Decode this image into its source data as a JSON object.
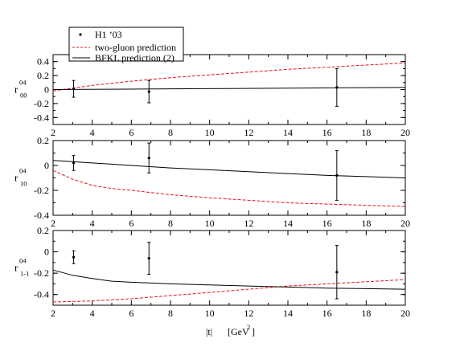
{
  "chart_data": {
    "type": "line",
    "x_label_main": "|t|",
    "x_label_unit": "[GeV",
    "x_label_unit_exp": "2",
    "x_label_unit_close": "]",
    "xlim": [
      2,
      20
    ],
    "x_ticks": [
      "2",
      "4",
      "6",
      "8",
      "10",
      "12",
      "14",
      "16",
      "18",
      "20"
    ],
    "legend": {
      "placement": "top-left",
      "entries": [
        {
          "label": "H1 ’03",
          "style": "points",
          "color": "#000000"
        },
        {
          "label": "two-gluon prediction",
          "style": "dashed",
          "color": "#e8141d"
        },
        {
          "label": "BFKL prediction (2)",
          "style": "solid",
          "color": "#000000"
        }
      ]
    },
    "panels": [
      {
        "ylabel_sup": "04",
        "ylabel_main": "r",
        "ylabel_sub": "00",
        "ylim": [
          -0.5,
          0.5
        ],
        "y_ticks": [
          "0.4",
          "0.2",
          "0",
          "-0.2",
          "-0.4"
        ],
        "y_tick_values": [
          0.4,
          0.2,
          0,
          -0.2,
          -0.4
        ],
        "data": {
          "name": "H1 ’03",
          "points": [
            {
              "x": 3.05,
              "y": 0.01,
              "err": 0.12
            },
            {
              "x": 6.9,
              "y": -0.03,
              "err": 0.16
            },
            {
              "x": 16.5,
              "y": 0.03,
              "err": 0.27
            }
          ]
        },
        "two_gluon": {
          "x": [
            2,
            4,
            6,
            8,
            10,
            12,
            14,
            16,
            18,
            20
          ],
          "y": [
            -0.02,
            0.06,
            0.12,
            0.17,
            0.21,
            0.25,
            0.29,
            0.32,
            0.35,
            0.38
          ]
        },
        "bfkl": {
          "x": [
            2,
            5,
            8,
            11,
            14,
            17,
            20
          ],
          "y": [
            0.0,
            0.005,
            0.01,
            0.015,
            0.02,
            0.025,
            0.03
          ]
        }
      },
      {
        "ylabel_sup": "04",
        "ylabel_main": "r",
        "ylabel_sub": "10",
        "ylim": [
          -0.4,
          0.2
        ],
        "y_ticks": [
          "0.2",
          "0",
          "-0.2",
          "-0.4"
        ],
        "y_tick_values": [
          0.2,
          0,
          -0.2,
          -0.4
        ],
        "data": {
          "name": "H1 ’03",
          "points": [
            {
              "x": 3.05,
              "y": 0.02,
              "err": 0.06
            },
            {
              "x": 6.9,
              "y": 0.06,
              "err": 0.12
            },
            {
              "x": 16.5,
              "y": -0.08,
              "err": 0.2
            }
          ]
        },
        "two_gluon": {
          "x": [
            2,
            3,
            4,
            5,
            6,
            8,
            10,
            12,
            14,
            16,
            18,
            20
          ],
          "y": [
            -0.04,
            -0.11,
            -0.16,
            -0.185,
            -0.2,
            -0.235,
            -0.26,
            -0.28,
            -0.3,
            -0.31,
            -0.32,
            -0.33
          ]
        },
        "bfkl": {
          "x": [
            2,
            4,
            6,
            8,
            10,
            12,
            14,
            16,
            18,
            20
          ],
          "y": [
            0.04,
            0.02,
            0.0,
            -0.02,
            -0.035,
            -0.05,
            -0.065,
            -0.08,
            -0.09,
            -0.1
          ]
        }
      },
      {
        "ylabel_sup": "04",
        "ylabel_main": "r",
        "ylabel_sub": "1-1",
        "ylim": [
          -0.5,
          0.2
        ],
        "y_ticks": [
          "0.2",
          "0",
          "-0.2",
          "-0.4"
        ],
        "y_tick_values": [
          0.2,
          0,
          -0.2,
          -0.4
        ],
        "data": {
          "name": "H1 ’03",
          "points": [
            {
              "x": 3.05,
              "y": -0.05,
              "err": 0.06
            },
            {
              "x": 6.9,
              "y": -0.06,
              "err": 0.15
            },
            {
              "x": 16.5,
              "y": -0.19,
              "err": 0.25
            }
          ]
        },
        "two_gluon": {
          "x": [
            2,
            4,
            6,
            8,
            10,
            12,
            14,
            16,
            18,
            20
          ],
          "y": [
            -0.47,
            -0.46,
            -0.44,
            -0.41,
            -0.38,
            -0.35,
            -0.32,
            -0.3,
            -0.28,
            -0.26
          ]
        },
        "bfkl": {
          "x": [
            2,
            3,
            4,
            5,
            6,
            8,
            10,
            12,
            14,
            16,
            18,
            20
          ],
          "y": [
            -0.17,
            -0.22,
            -0.25,
            -0.275,
            -0.285,
            -0.3,
            -0.31,
            -0.32,
            -0.33,
            -0.34,
            -0.345,
            -0.35
          ]
        }
      }
    ]
  }
}
